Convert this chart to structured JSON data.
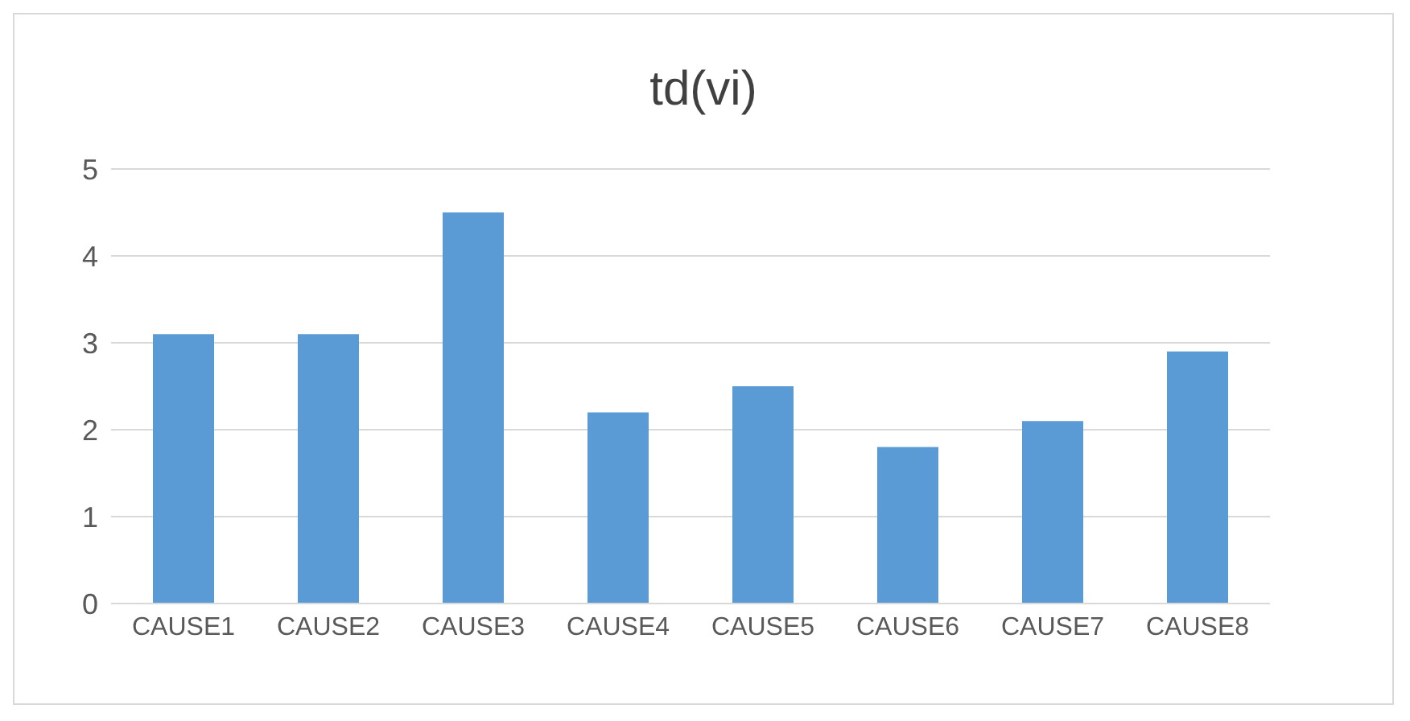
{
  "chart_data": {
    "type": "bar",
    "title": "td(vi)",
    "categories": [
      "CAUSE1",
      "CAUSE2",
      "CAUSE3",
      "CAUSE4",
      "CAUSE5",
      "CAUSE6",
      "CAUSE7",
      "CAUSE8"
    ],
    "values": [
      3.1,
      3.1,
      4.5,
      2.2,
      2.5,
      1.8,
      2.1,
      2.9
    ],
    "color": "#5b9bd5",
    "ylim": [
      0,
      5
    ],
    "yticks": [
      0,
      1,
      2,
      3,
      4,
      5
    ],
    "grid": "y"
  }
}
